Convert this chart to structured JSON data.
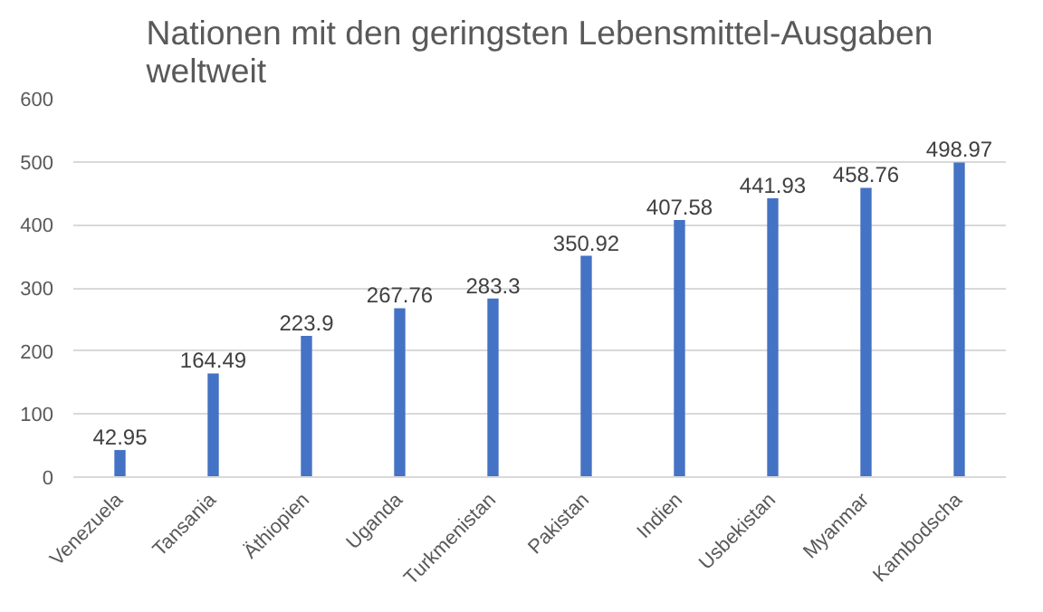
{
  "chart_data": {
    "type": "bar",
    "title": "Nationen mit den geringsten Lebensmittel-Ausgaben weltweit",
    "categories": [
      "Venezuela",
      "Tansania",
      "Äthiopien",
      "Uganda",
      "Turkmenistan",
      "Pakistan",
      "Indien",
      "Usbekistan",
      "Myanmar",
      "Kambodscha"
    ],
    "values": [
      42.95,
      164.49,
      223.9,
      267.76,
      283.3,
      350.92,
      407.58,
      441.93,
      458.76,
      498.97
    ],
    "color": "#4472c4",
    "ylim": [
      0,
      600
    ],
    "yticks": [
      0,
      100,
      200,
      300,
      400,
      500,
      600
    ],
    "grid": "y",
    "data_labels": true
  }
}
